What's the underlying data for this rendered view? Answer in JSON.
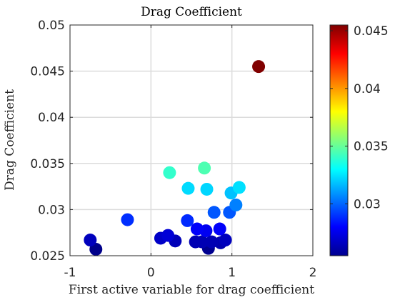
{
  "chart_data": {
    "type": "scatter",
    "title": "Drag Coefficient",
    "xlabel": "First active variable for drag coefficient",
    "ylabel": "Drag Coefficient",
    "xlim": [
      -1,
      2
    ],
    "ylim": [
      0.025,
      0.05
    ],
    "xticks": [
      -1,
      0,
      1,
      2
    ],
    "xtick_labels": [
      "-1",
      "0",
      "1",
      "2"
    ],
    "yticks": [
      0.025,
      0.03,
      0.035,
      0.04,
      0.045,
      0.05
    ],
    "ytick_labels": [
      "0.025",
      "0.03",
      "0.035",
      "0.04",
      "0.045",
      "0.05"
    ],
    "grid": true,
    "colormap": "jet",
    "colorbar": {
      "range": [
        0.0255,
        0.0455
      ],
      "ticks": [
        0.03,
        0.035,
        0.04,
        0.045
      ],
      "tick_labels": [
        "0.03",
        "0.035",
        "0.04",
        "0.045"
      ],
      "placement": "right"
    },
    "points": [
      {
        "x": 1.33,
        "y": 0.0455
      },
      {
        "x": 0.66,
        "y": 0.0345
      },
      {
        "x": 0.23,
        "y": 0.034
      },
      {
        "x": 0.46,
        "y": 0.0323
      },
      {
        "x": 0.69,
        "y": 0.0322
      },
      {
        "x": 1.09,
        "y": 0.0324
      },
      {
        "x": 0.99,
        "y": 0.0318
      },
      {
        "x": 1.05,
        "y": 0.0305
      },
      {
        "x": 0.97,
        "y": 0.0297
      },
      {
        "x": 0.78,
        "y": 0.0297
      },
      {
        "x": -0.29,
        "y": 0.0289
      },
      {
        "x": 0.45,
        "y": 0.0288
      },
      {
        "x": 0.57,
        "y": 0.0279
      },
      {
        "x": 0.68,
        "y": 0.0277
      },
      {
        "x": 0.85,
        "y": 0.0279
      },
      {
        "x": 0.21,
        "y": 0.0272
      },
      {
        "x": 0.12,
        "y": 0.0269
      },
      {
        "x": 0.3,
        "y": 0.0266
      },
      {
        "x": 0.55,
        "y": 0.0265
      },
      {
        "x": 0.63,
        "y": 0.0265
      },
      {
        "x": 0.75,
        "y": 0.0265
      },
      {
        "x": 0.86,
        "y": 0.0264
      },
      {
        "x": 0.92,
        "y": 0.0267
      },
      {
        "x": 0.71,
        "y": 0.0258
      },
      {
        "x": -0.75,
        "y": 0.0267
      },
      {
        "x": -0.68,
        "y": 0.0257
      }
    ]
  }
}
